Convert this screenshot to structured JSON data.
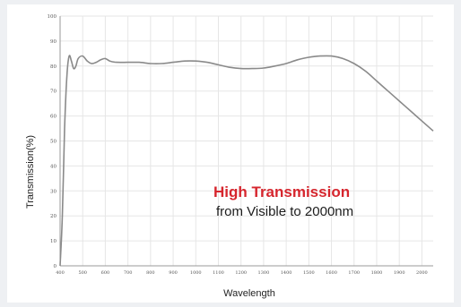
{
  "chart_data": {
    "type": "line",
    "title": "",
    "xlabel": "Wavelength",
    "ylabel": "Transmission(%)",
    "xlim": [
      400,
      2050
    ],
    "ylim": [
      0,
      100
    ],
    "x_ticks": [
      400,
      500,
      600,
      700,
      800,
      900,
      1000,
      1100,
      1200,
      1300,
      1400,
      1500,
      1600,
      1700,
      1800,
      1900,
      2000
    ],
    "y_ticks": [
      0,
      10,
      20,
      30,
      40,
      50,
      60,
      70,
      80,
      90,
      100
    ],
    "grid": true,
    "series": [
      {
        "x": [
          400,
          410,
          420,
          430,
          440,
          450,
          460,
          470,
          480,
          500,
          520,
          540,
          560,
          580,
          600,
          620,
          650,
          700,
          750,
          800,
          850,
          900,
          950,
          1000,
          1050,
          1100,
          1150,
          1200,
          1250,
          1300,
          1350,
          1400,
          1450,
          1500,
          1550,
          1600,
          1650,
          1700,
          1750,
          1800,
          1850,
          1900,
          1950,
          2000,
          2050
        ],
        "y": [
          0,
          20,
          55,
          76,
          84,
          82,
          79,
          80,
          83,
          84,
          82,
          81,
          81.5,
          82.5,
          83,
          82,
          81.5,
          81.5,
          81.5,
          81,
          81,
          81.5,
          82,
          82,
          81.5,
          80.5,
          79.5,
          79,
          79,
          79.2,
          80,
          81,
          82.5,
          83.5,
          84,
          84,
          83,
          81,
          78,
          74,
          70,
          66,
          62,
          58,
          54
        ]
      }
    ],
    "annotation": {
      "highlight": "High Transmission",
      "text": "from Visible to 2000nm"
    }
  }
}
